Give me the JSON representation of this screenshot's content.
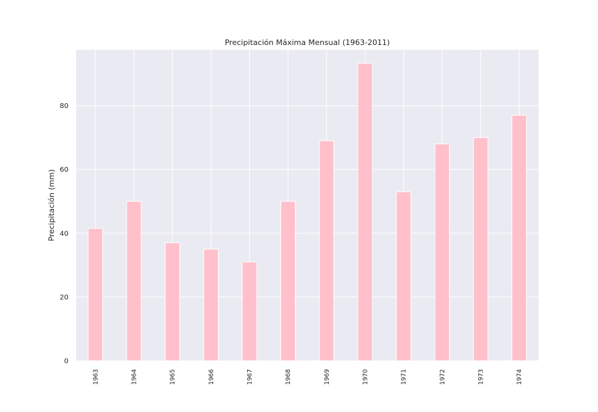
{
  "chart_data": {
    "type": "bar",
    "title": "Precipitación Máxima Mensual (1963-2011)",
    "xlabel": "",
    "ylabel": "Precipitación (mm)",
    "categories": [
      "1963",
      "1964",
      "1965",
      "1966",
      "1967",
      "1968",
      "1969",
      "1970",
      "1971",
      "1972",
      "1973",
      "1974"
    ],
    "values": [
      41.5,
      50,
      37,
      35,
      31,
      50,
      69,
      93.3,
      53,
      68,
      70,
      77
    ],
    "ylim": [
      0,
      97.5
    ],
    "yticks": [
      0,
      20,
      40,
      60,
      80
    ],
    "bar_color": "#ffc0cb",
    "background_color": "#eaeaf2",
    "grid": true,
    "legend": "none"
  }
}
